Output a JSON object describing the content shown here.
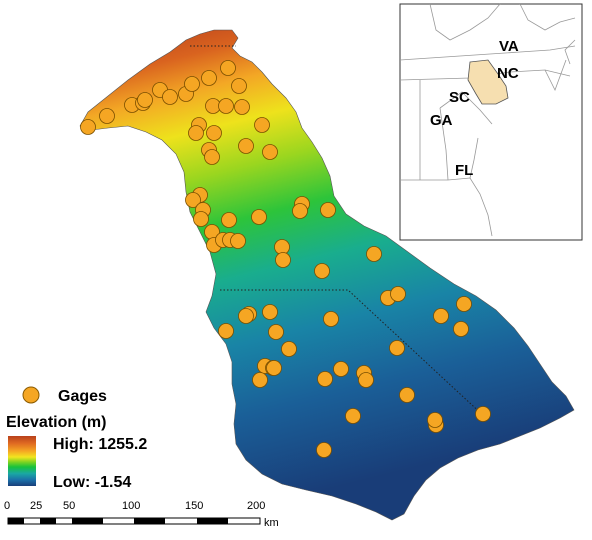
{
  "legend": {
    "gages_label": "Gages",
    "elevation_title": "Elevation (m)",
    "high_label": "High: 1255.2",
    "low_label": "Low: -1.54",
    "ramp_colors": [
      "#b8401b",
      "#e06b22",
      "#f5a623",
      "#f2e520",
      "#7fd321",
      "#17c23c",
      "#1aa8a3",
      "#1b6fa8",
      "#1a3f7a"
    ]
  },
  "scalebar": {
    "ticks": [
      "0",
      "25",
      "50",
      "100",
      "150",
      "200"
    ],
    "unit": "km"
  },
  "inset": {
    "state_labels": [
      "VA",
      "NC",
      "SC",
      "GA",
      "FL"
    ],
    "highlight_color": "#f6dfb0"
  },
  "gage_color": "#f5a623"
}
